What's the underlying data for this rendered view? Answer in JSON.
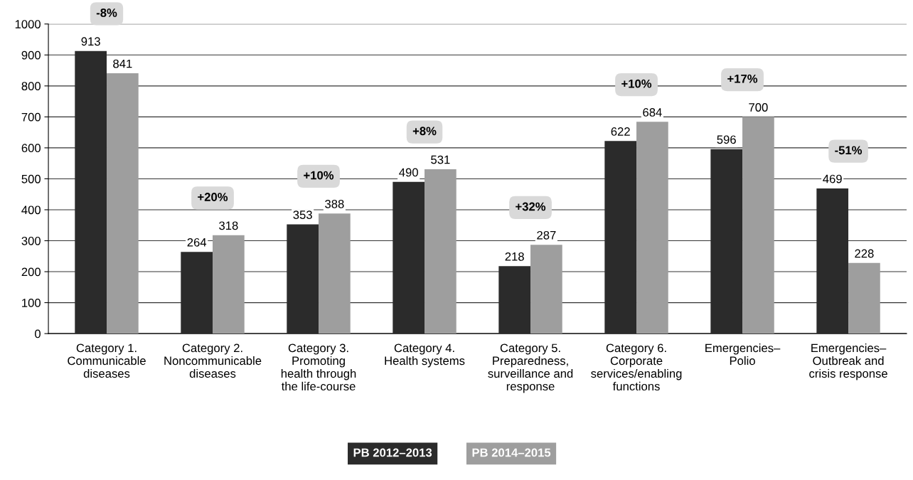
{
  "chart_data": {
    "type": "bar",
    "categories": [
      "Category 1.\nCommunicable\ndiseases",
      "Category 2.\nNoncommunicable\ndiseases",
      "Category 3.\nPromoting\nhealth through\nthe life-course",
      "Category 4.\nHealth systems",
      "Category 5.\nPreparedness,\nsurveillance and\nresponse",
      "Category 6.\nCorporate\nservices/enabling\nfunctions",
      "Emergencies–\nPolio",
      "Emergencies–\nOutbreak and\ncrisis response"
    ],
    "series": [
      {
        "name": "PB 2012–2013",
        "color": "#2b2b2b",
        "values": [
          913,
          264,
          353,
          490,
          218,
          622,
          596,
          469
        ]
      },
      {
        "name": "PB 2014–2015",
        "color": "#9e9e9e",
        "values": [
          841,
          318,
          388,
          531,
          287,
          684,
          700,
          228
        ]
      }
    ],
    "ylim": [
      0,
      1000
    ],
    "yticks": [
      0,
      100,
      200,
      300,
      400,
      500,
      600,
      700,
      800,
      900,
      1000
    ],
    "grid": "y",
    "legend": "bottom",
    "data_labels": true,
    "annotations": [
      "-8%",
      "+20%",
      "+10%",
      "+8%",
      "+32%",
      "+10%",
      "+17%",
      "-51%"
    ]
  }
}
